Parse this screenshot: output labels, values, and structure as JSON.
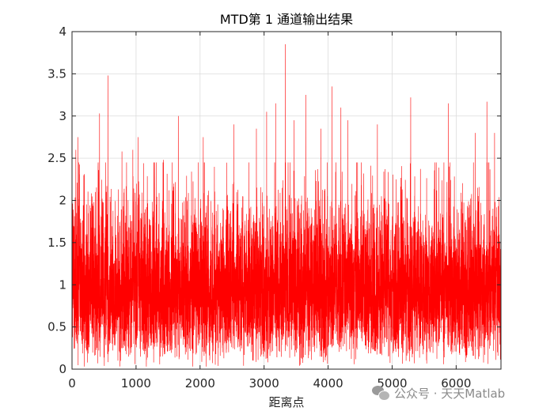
{
  "chart_data": {
    "type": "line",
    "title": "MTD第 1 通道输出结果",
    "xlabel": "距离点",
    "ylabel": "",
    "xlim": [
      0,
      6700
    ],
    "ylim": [
      0,
      4
    ],
    "xticks": [
      0,
      1000,
      2000,
      3000,
      4000,
      5000,
      6000
    ],
    "xtick_labels": [
      "0",
      "1000",
      "2000",
      "3000",
      "4000",
      "5000",
      "6000"
    ],
    "yticks": [
      0,
      0.5,
      1,
      1.5,
      2,
      2.5,
      3,
      3.5,
      4
    ],
    "ytick_labels": [
      "0",
      "0.5",
      "1",
      "1.5",
      "2",
      "2.5",
      "3",
      "3.5",
      "4"
    ],
    "grid": true,
    "legend": "none",
    "series": [
      {
        "color": "#ff0000",
        "n_points": 6700,
        "baseline_approx": 0.95,
        "typical_band": [
          0.3,
          1.8
        ],
        "peaks": [
          {
            "x": 60,
            "y": 2.6
          },
          {
            "x": 90,
            "y": 2.75
          },
          {
            "x": 430,
            "y": 3.03
          },
          {
            "x": 560,
            "y": 3.48
          },
          {
            "x": 780,
            "y": 2.58
          },
          {
            "x": 950,
            "y": 2.6
          },
          {
            "x": 1030,
            "y": 2.75
          },
          {
            "x": 1430,
            "y": 2.48
          },
          {
            "x": 1660,
            "y": 3.0
          },
          {
            "x": 2050,
            "y": 2.75
          },
          {
            "x": 2530,
            "y": 2.9
          },
          {
            "x": 2880,
            "y": 2.85
          },
          {
            "x": 3040,
            "y": 3.05
          },
          {
            "x": 3180,
            "y": 3.15
          },
          {
            "x": 3330,
            "y": 3.85
          },
          {
            "x": 3470,
            "y": 2.95
          },
          {
            "x": 3650,
            "y": 3.25
          },
          {
            "x": 3890,
            "y": 2.85
          },
          {
            "x": 4060,
            "y": 3.35
          },
          {
            "x": 4200,
            "y": 3.1
          },
          {
            "x": 4310,
            "y": 2.95
          },
          {
            "x": 4770,
            "y": 2.9
          },
          {
            "x": 5290,
            "y": 3.22
          },
          {
            "x": 5880,
            "y": 3.15
          },
          {
            "x": 6300,
            "y": 2.8
          },
          {
            "x": 6480,
            "y": 3.17
          },
          {
            "x": 6600,
            "y": 2.8
          }
        ]
      }
    ]
  },
  "watermark": {
    "text": "公众号 · 天天Matlab",
    "icon": "wechat-icon"
  }
}
